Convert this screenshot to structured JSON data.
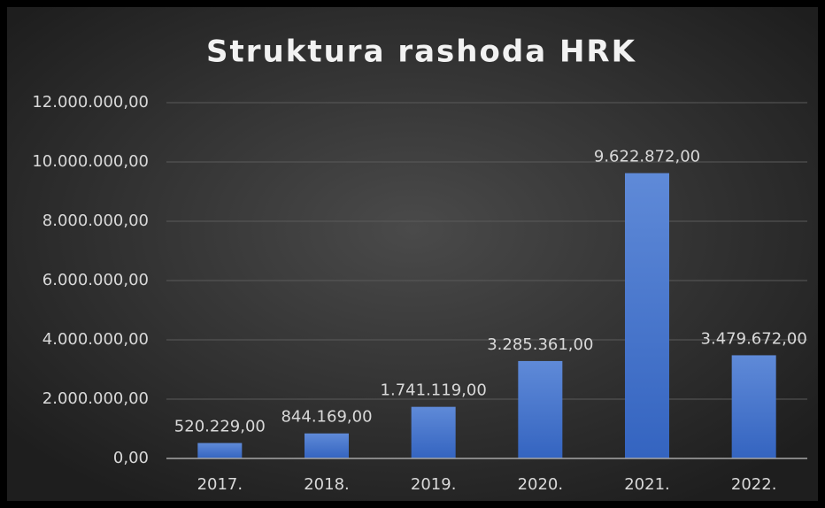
{
  "chart_data": {
    "type": "bar",
    "title": "Struktura rashoda HRK",
    "categories": [
      "2017.",
      "2018.",
      "2019.",
      "2020.",
      "2021.",
      "2022."
    ],
    "values": [
      520229,
      844169,
      1741119,
      3285361,
      9622872,
      3479672
    ],
    "value_labels": [
      "520.229,00",
      "844.169,00",
      "1.741.119,00",
      "3.285.361,00",
      "9.622.872,00",
      "3.479.672,00"
    ],
    "color": "#4a7bd0",
    "ylim": [
      0,
      12000000
    ],
    "yticks": [
      {
        "value": 0,
        "label": "0,00"
      },
      {
        "value": 2000000,
        "label": "2.000.000,00"
      },
      {
        "value": 4000000,
        "label": "4.000.000,00"
      },
      {
        "value": 6000000,
        "label": "6.000.000,00"
      },
      {
        "value": 8000000,
        "label": "8.000.000,00"
      },
      {
        "value": 10000000,
        "label": "10.000.000,00"
      },
      {
        "value": 12000000,
        "label": "12.000.000,00"
      }
    ],
    "grid": true
  }
}
